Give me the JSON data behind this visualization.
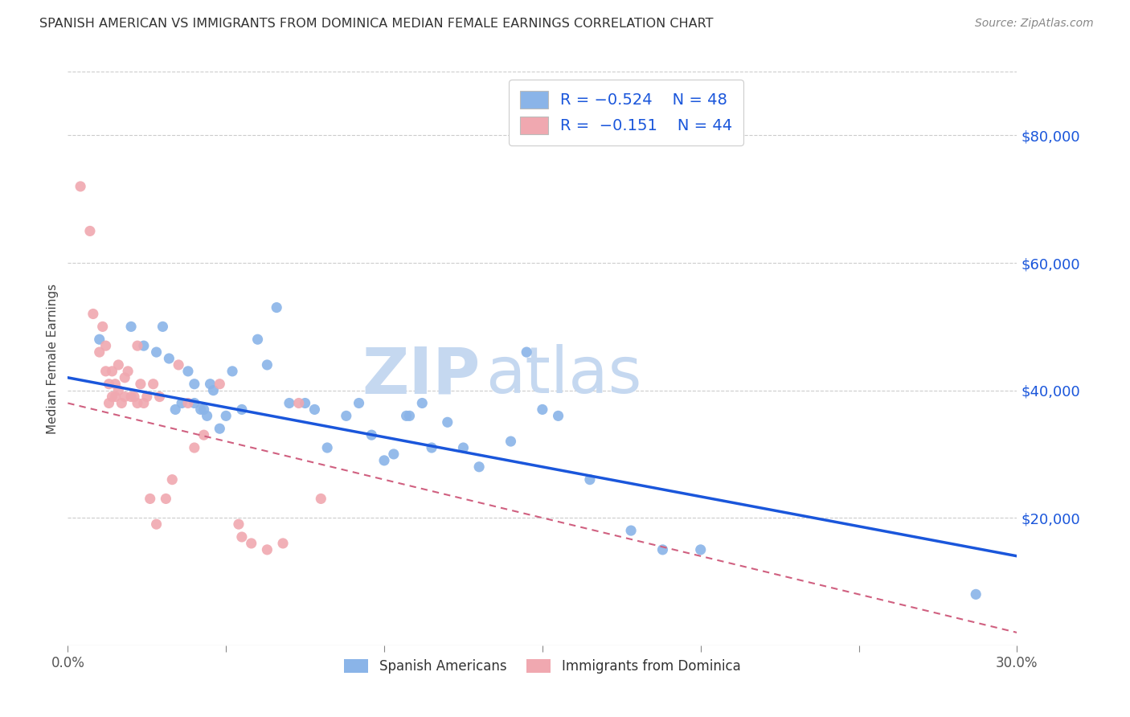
{
  "title": "SPANISH AMERICAN VS IMMIGRANTS FROM DOMINICA MEDIAN FEMALE EARNINGS CORRELATION CHART",
  "source": "Source: ZipAtlas.com",
  "ylabel": "Median Female Earnings",
  "xlim": [
    0.0,
    0.3
  ],
  "ylim": [
    0,
    90000
  ],
  "xticks": [
    0.0,
    0.05,
    0.1,
    0.15,
    0.2,
    0.25,
    0.3
  ],
  "xtick_labels": [
    "0.0%",
    "",
    "",
    "",
    "",
    "",
    "30.0%"
  ],
  "ytick_positions": [
    20000,
    40000,
    60000,
    80000
  ],
  "ytick_labels": [
    "$20,000",
    "$40,000",
    "$60,000",
    "$80,000"
  ],
  "blue_color": "#8ab4e8",
  "pink_color": "#f0a8b0",
  "blue_line_color": "#1a56db",
  "pink_line_color": "#d06080",
  "blue_scatter_x": [
    0.01,
    0.02,
    0.024,
    0.028,
    0.03,
    0.032,
    0.034,
    0.036,
    0.038,
    0.04,
    0.04,
    0.042,
    0.043,
    0.044,
    0.045,
    0.046,
    0.048,
    0.05,
    0.052,
    0.055,
    0.06,
    0.063,
    0.066,
    0.07,
    0.075,
    0.078,
    0.082,
    0.088,
    0.092,
    0.096,
    0.1,
    0.103,
    0.107,
    0.108,
    0.112,
    0.115,
    0.12,
    0.125,
    0.13,
    0.14,
    0.145,
    0.15,
    0.155,
    0.165,
    0.178,
    0.188,
    0.2,
    0.287
  ],
  "blue_scatter_y": [
    48000,
    50000,
    47000,
    46000,
    50000,
    45000,
    37000,
    38000,
    43000,
    38000,
    41000,
    37000,
    37000,
    36000,
    41000,
    40000,
    34000,
    36000,
    43000,
    37000,
    48000,
    44000,
    53000,
    38000,
    38000,
    37000,
    31000,
    36000,
    38000,
    33000,
    29000,
    30000,
    36000,
    36000,
    38000,
    31000,
    35000,
    31000,
    28000,
    32000,
    46000,
    37000,
    36000,
    26000,
    18000,
    15000,
    15000,
    8000
  ],
  "pink_scatter_x": [
    0.004,
    0.007,
    0.008,
    0.01,
    0.011,
    0.012,
    0.012,
    0.013,
    0.013,
    0.014,
    0.014,
    0.015,
    0.015,
    0.016,
    0.016,
    0.017,
    0.018,
    0.018,
    0.019,
    0.02,
    0.021,
    0.022,
    0.022,
    0.023,
    0.024,
    0.025,
    0.026,
    0.027,
    0.028,
    0.029,
    0.031,
    0.033,
    0.035,
    0.038,
    0.04,
    0.043,
    0.048,
    0.054,
    0.058,
    0.063,
    0.068,
    0.073,
    0.08,
    0.055
  ],
  "pink_scatter_y": [
    72000,
    65000,
    52000,
    46000,
    50000,
    47000,
    43000,
    41000,
    38000,
    39000,
    43000,
    39000,
    41000,
    40000,
    44000,
    38000,
    39000,
    42000,
    43000,
    39000,
    39000,
    38000,
    47000,
    41000,
    38000,
    39000,
    23000,
    41000,
    19000,
    39000,
    23000,
    26000,
    44000,
    38000,
    31000,
    33000,
    41000,
    19000,
    16000,
    15000,
    16000,
    38000,
    23000,
    17000
  ],
  "blue_line_x0": 0.0,
  "blue_line_y0": 42000,
  "blue_line_x1": 0.3,
  "blue_line_y1": 14000,
  "pink_line_x0": 0.0,
  "pink_line_y0": 38000,
  "pink_line_x1": 0.3,
  "pink_line_y1": 2000
}
